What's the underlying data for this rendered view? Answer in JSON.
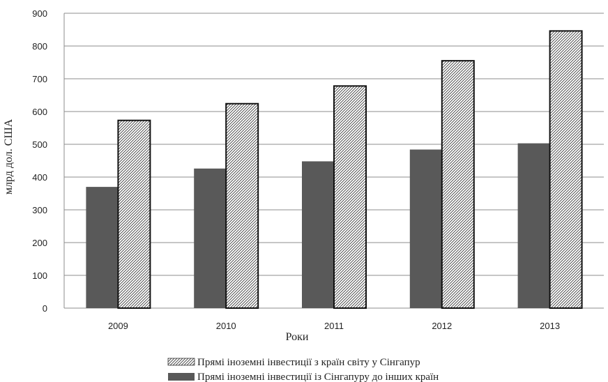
{
  "chart_data": {
    "type": "bar",
    "title": "",
    "xlabel": "Роки",
    "ylabel": "млрд дол. США",
    "categories": [
      "2009",
      "2010",
      "2011",
      "2012",
      "2013"
    ],
    "ylim": [
      0,
      900
    ],
    "yticks": [
      0,
      100,
      200,
      300,
      400,
      500,
      600,
      700,
      800,
      900
    ],
    "grid": true,
    "legend_position": "bottom",
    "series": [
      {
        "name": "Прямі іноземні інвестиції із Сінгапуру до інших країн",
        "values": [
          370,
          426,
          448,
          484,
          503
        ],
        "color": "#595959",
        "pattern": "solid"
      },
      {
        "name": "Прямі іноземні інвестиції з країн світу у Сінгапур",
        "values": [
          573,
          624,
          678,
          755,
          846
        ],
        "color": "#ffffff",
        "pattern": "diagonal-hatch"
      }
    ]
  }
}
